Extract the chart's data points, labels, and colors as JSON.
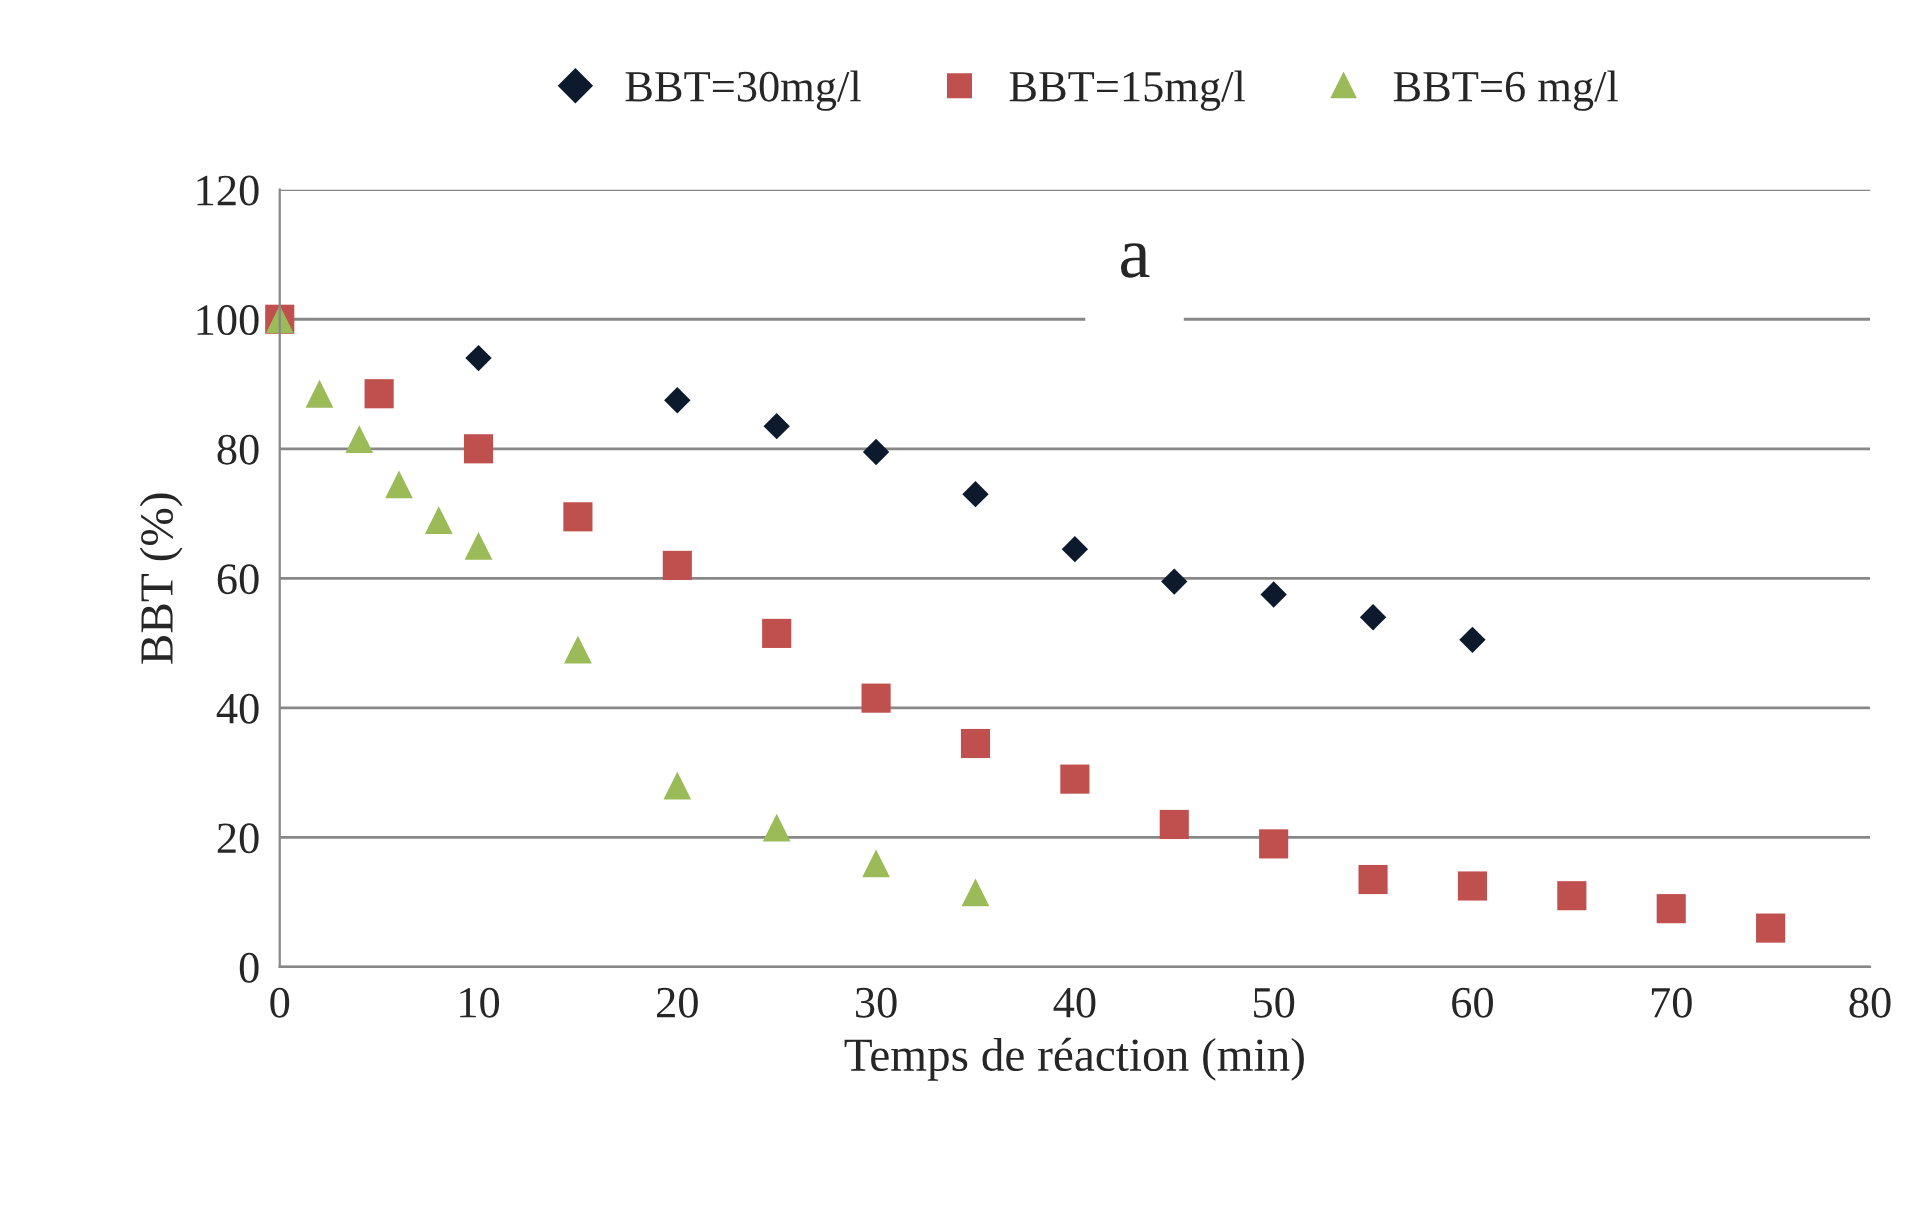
{
  "chart_data": {
    "type": "scatter",
    "xlabel": "Temps de réaction (min)",
    "ylabel": "BBT (%)",
    "xlim": [
      0,
      80
    ],
    "xticks": [
      0,
      10,
      20,
      30,
      40,
      50,
      60,
      70,
      80
    ],
    "ylim": [
      0,
      120
    ],
    "yticks": [
      0,
      20,
      40,
      60,
      80,
      100,
      120
    ],
    "grid": "y",
    "legend": "top",
    "annotations": [
      "a"
    ],
    "series": [
      {
        "name": "BBT=30mg/l",
        "color": "#0d1a2e",
        "marker": "diamond",
        "x": [
          10,
          20,
          25,
          30,
          35,
          40,
          45,
          50,
          55,
          60
        ],
        "values": [
          94,
          87.5,
          83.5,
          79.5,
          73,
          64.5,
          59.5,
          57.5,
          54,
          50.5
        ]
      },
      {
        "name": "BBT=15mg/l",
        "color": "#c0504d",
        "marker": "square",
        "x": [
          0,
          5,
          10,
          15,
          20,
          25,
          30,
          35,
          40,
          45,
          50,
          55,
          60,
          65,
          70,
          75
        ],
        "values": [
          100,
          88.5,
          80,
          69.5,
          62,
          51.5,
          41.5,
          34.5,
          29,
          22,
          19,
          13.5,
          12.5,
          11,
          9,
          6
        ]
      },
      {
        "name": "BBT=6 mg/l",
        "color": "#9bbb59",
        "marker": "triangle",
        "x": [
          0,
          2,
          4,
          6,
          8,
          10,
          15,
          20,
          25,
          30,
          35
        ],
        "values": [
          100,
          88.5,
          81.5,
          74.5,
          69,
          65,
          49,
          28,
          21.5,
          16,
          11.5
        ]
      }
    ]
  }
}
